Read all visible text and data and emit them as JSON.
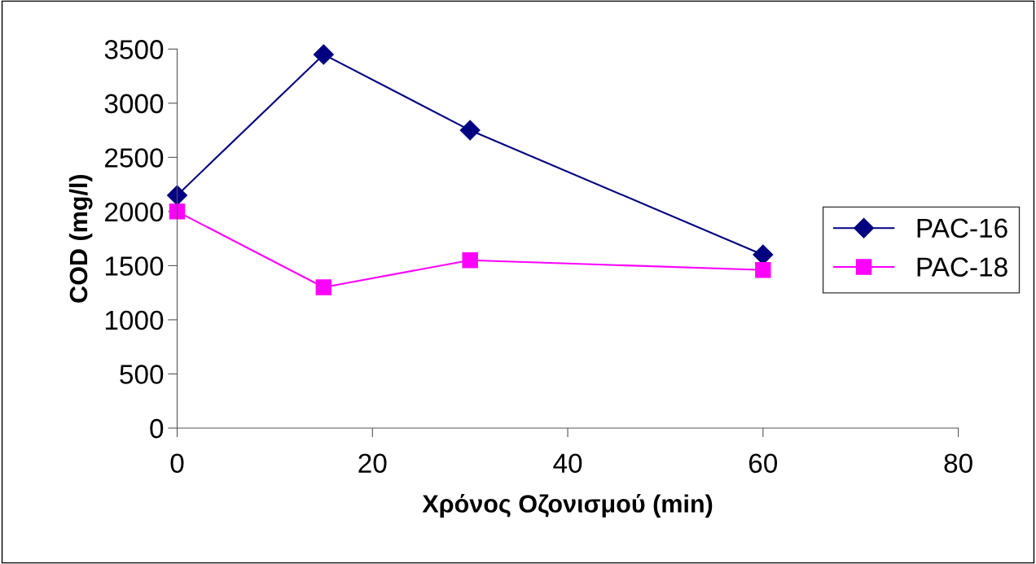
{
  "chart_data": {
    "type": "line",
    "xlabel": "Χρόνος Οζονισμού (min)",
    "ylabel": "COD (mg/l)",
    "x": [
      0,
      15,
      30,
      60
    ],
    "series": [
      {
        "name": "PAC-16",
        "color": "#000080",
        "marker": "diamond",
        "values": [
          2150,
          3450,
          2750,
          1600
        ]
      },
      {
        "name": "PAC-18",
        "color": "#ff00ff",
        "marker": "square",
        "values": [
          2000,
          1300,
          1550,
          1460
        ]
      }
    ],
    "xlim": [
      0,
      80
    ],
    "xticks": [
      0,
      20,
      40,
      60,
      80
    ],
    "ylim": [
      0,
      3500
    ],
    "yticks": [
      0,
      500,
      1000,
      1500,
      2000,
      2500,
      3000,
      3500
    ],
    "grid": false,
    "legend": "right",
    "line_style": "solid"
  }
}
